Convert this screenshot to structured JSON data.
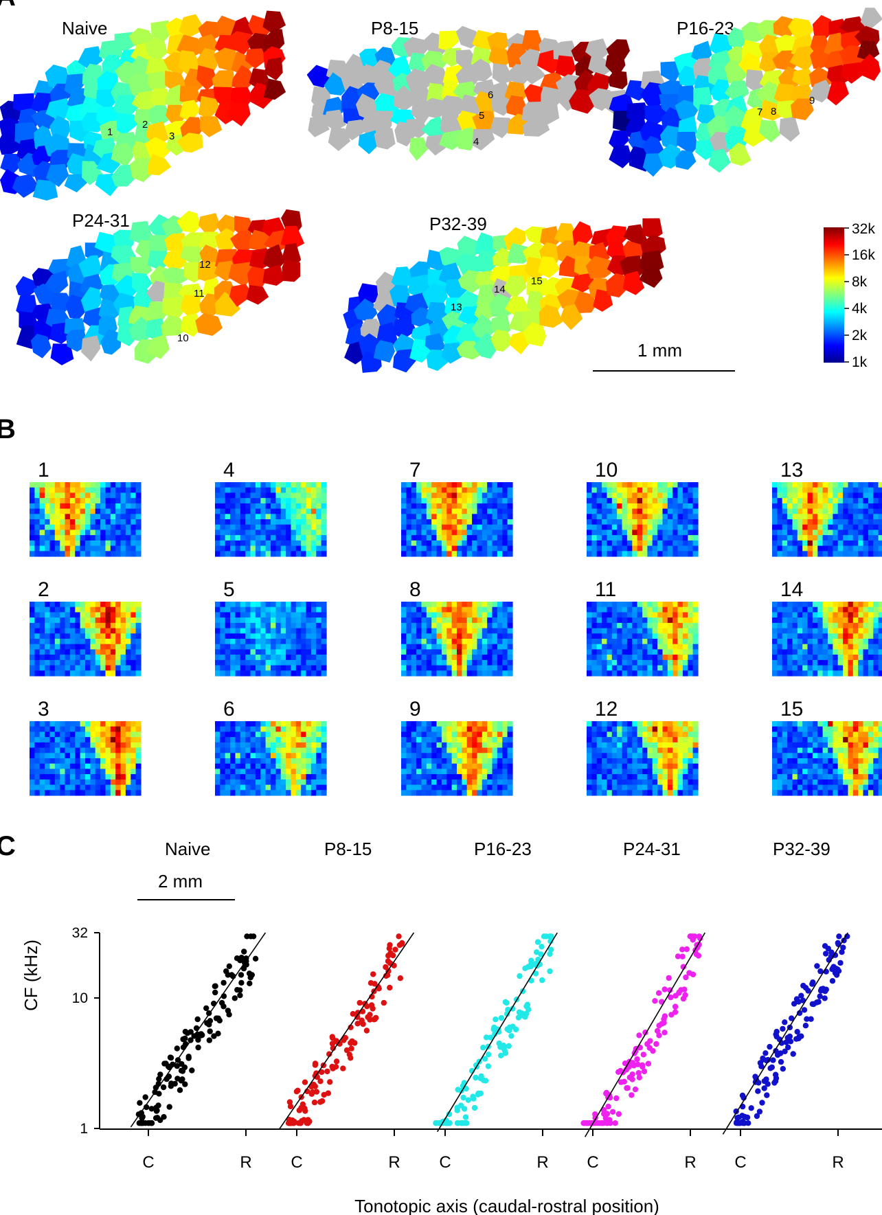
{
  "panels": {
    "A": {
      "letter": "A",
      "maps": [
        {
          "title": "Naive",
          "sites": [
            "1",
            "2",
            "3"
          ]
        },
        {
          "title": "P8-15",
          "sites": [
            "4",
            "5",
            "6"
          ]
        },
        {
          "title": "P16-23",
          "sites": [
            "7",
            "8",
            "9"
          ]
        },
        {
          "title": "P24-31",
          "sites": [
            "10",
            "11",
            "12"
          ]
        },
        {
          "title": "P32-39",
          "sites": [
            "13",
            "14",
            "15"
          ]
        }
      ],
      "colorbar": {
        "labels": [
          "32k",
          "16k",
          "8k",
          "4k",
          "2k",
          "1k"
        ]
      },
      "scalebar_label": "1 mm"
    },
    "B": {
      "letter": "B",
      "tuning_labels": [
        "1",
        "2",
        "3",
        "4",
        "5",
        "6",
        "7",
        "8",
        "9",
        "10",
        "11",
        "12",
        "13",
        "14",
        "15"
      ]
    },
    "C": {
      "letter": "C",
      "scalebar_label": "2 mm"
    }
  },
  "colors": {
    "naive": "#000000",
    "p8_15": "#dd1111",
    "p16_23": "#22e8e8",
    "p24_31": "#ee22ee",
    "p32_39": "#1111cc",
    "no_response": "#b8b8b8"
  },
  "chart_data": {
    "type": "scatter",
    "ylabel": "CF (kHz)",
    "xlabel": "Tonotopic axis (caudal-rostral position)",
    "yscale": "log",
    "ylim": [
      1,
      32
    ],
    "yticks": [
      "1",
      "10",
      "32"
    ],
    "xtick_labels": [
      "C",
      "R"
    ],
    "series": [
      {
        "name": "Naive",
        "color": "#000000",
        "fit": [
          [
            0.0,
            1.25
          ],
          [
            1.2,
            32
          ]
        ]
      },
      {
        "name": "P8-15",
        "color": "#dd1111",
        "fit": [
          [
            0.0,
            1.2
          ],
          [
            1.2,
            32
          ]
        ]
      },
      {
        "name": "P16-23",
        "color": "#22e8e8",
        "fit": [
          [
            0.1,
            1.15
          ],
          [
            1.15,
            32
          ]
        ]
      },
      {
        "name": "P24-31",
        "color": "#ee22ee",
        "fit": [
          [
            0.1,
            1.05
          ],
          [
            1.15,
            32
          ]
        ]
      },
      {
        "name": "P32-39",
        "color": "#1111cc",
        "fit": [
          [
            0.0,
            1.1
          ],
          [
            1.1,
            32
          ]
        ]
      }
    ]
  }
}
